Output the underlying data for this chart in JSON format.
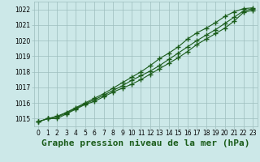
{
  "title": "Graphe pression niveau de la mer (hPa)",
  "xlabel_hours": [
    0,
    1,
    2,
    3,
    4,
    5,
    6,
    7,
    8,
    9,
    10,
    11,
    12,
    13,
    14,
    15,
    16,
    17,
    18,
    19,
    20,
    21,
    22,
    23
  ],
  "line1": [
    1014.8,
    1015.0,
    1015.0,
    1015.3,
    1015.6,
    1015.9,
    1016.1,
    1016.4,
    1016.7,
    1016.95,
    1017.2,
    1017.5,
    1017.85,
    1018.2,
    1018.55,
    1018.9,
    1019.3,
    1019.75,
    1020.1,
    1020.45,
    1020.8,
    1021.25,
    1021.8,
    1021.95
  ],
  "line2": [
    1014.8,
    1015.0,
    1015.1,
    1015.35,
    1015.65,
    1015.95,
    1016.2,
    1016.5,
    1016.8,
    1017.1,
    1017.45,
    1017.75,
    1018.05,
    1018.4,
    1018.8,
    1019.2,
    1019.6,
    1020.0,
    1020.35,
    1020.7,
    1021.1,
    1021.5,
    1021.9,
    1022.05
  ],
  "line3": [
    1014.8,
    1015.0,
    1015.15,
    1015.4,
    1015.7,
    1016.0,
    1016.3,
    1016.6,
    1016.95,
    1017.3,
    1017.65,
    1018.0,
    1018.4,
    1018.85,
    1019.2,
    1019.6,
    1020.1,
    1020.5,
    1020.8,
    1021.15,
    1021.55,
    1021.85,
    1022.05,
    1022.1
  ],
  "ylim_min": 1014.5,
  "ylim_max": 1022.5,
  "yticks": [
    1015,
    1016,
    1017,
    1018,
    1019,
    1020,
    1021,
    1022
  ],
  "bg_color": "#cce8e8",
  "grid_color": "#9dbdbd",
  "line_color": "#1a5c1a",
  "marker": "+",
  "markersize": 4,
  "linewidth": 0.8,
  "title_fontsize": 8,
  "tick_fontsize": 5.5
}
